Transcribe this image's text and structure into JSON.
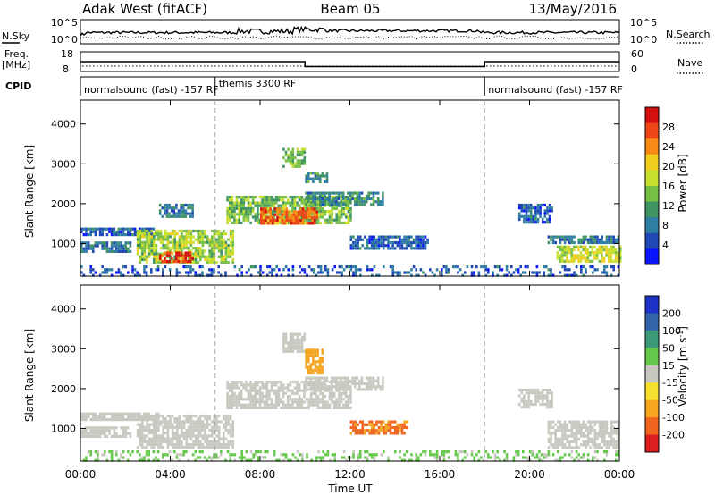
{
  "header": {
    "radar_title": "Adak West (fitACF)",
    "beam": "Beam 05",
    "date": "13/May/2016"
  },
  "noise_panel": {
    "left_label": "N.Sky",
    "right_label": "N.Search",
    "left_ticks": [
      "10^5",
      "10^0"
    ],
    "right_ticks": [
      "10^5",
      "10^0"
    ]
  },
  "freq_panel": {
    "left_label_1": "Freq.",
    "left_label_2": "[MHz]",
    "right_label": "Nave",
    "left_ticks": [
      "18",
      "8"
    ],
    "right_ticks": [
      "60",
      "0"
    ],
    "freq_levels_mhz": [
      {
        "start_hour": 0,
        "end_hour": 10,
        "value": 13
      },
      {
        "start_hour": 10,
        "end_hour": 18,
        "value": 10.5
      },
      {
        "start_hour": 18,
        "end_hour": 24,
        "value": 13
      }
    ]
  },
  "cpid": {
    "label": "CPID",
    "segments": [
      {
        "text": "normalsound (fast) -157 RF",
        "start_hour": 0,
        "end_hour": 6
      },
      {
        "text": "themis 3300 RF",
        "start_hour": 6,
        "end_hour": 18
      },
      {
        "text": "normalsound (fast) -157 RF",
        "start_hour": 18,
        "end_hour": 24
      }
    ]
  },
  "axes": {
    "y_label": "Slant Range [km]",
    "y_ticks": [
      "1000",
      "2000",
      "3000",
      "4000"
    ],
    "x_label": "Time UT",
    "x_ticks": [
      "00:00",
      "04:00",
      "08:00",
      "12:00",
      "16:00",
      "20:00",
      "00:00"
    ]
  },
  "chart_data": [
    {
      "type": "heatmap",
      "title": "Power",
      "xlabel": "Time UT",
      "ylabel": "Slant Range [km]",
      "xlim_hours": [
        0,
        24
      ],
      "ylim_km": [
        180,
        4600
      ],
      "colorbar": {
        "label": "Power [dB]",
        "ticks": [
          "28",
          "24",
          "20",
          "16",
          "12",
          "8",
          "4"
        ],
        "range": [
          0,
          32
        ],
        "colors": [
          "#0a14ff",
          "#1f48b4",
          "#2e7da2",
          "#3f9462",
          "#77be45",
          "#c8df2c",
          "#f0ce1e",
          "#f68a14",
          "#ee4616",
          "#d40f10"
        ]
      },
      "echo_regions": [
        {
          "hour_start": 0.0,
          "hour_end": 2.2,
          "range_start_km": 800,
          "range_end_km": 1050,
          "power_db": 8
        },
        {
          "hour_start": 0.0,
          "hour_end": 3.5,
          "range_start_km": 1250,
          "range_end_km": 1400,
          "power_db": 6
        },
        {
          "hour_start": 2.5,
          "hour_end": 6.8,
          "range_start_km": 550,
          "range_end_km": 1350,
          "power_db": 16
        },
        {
          "hour_start": 3.5,
          "hour_end": 5.0,
          "range_start_km": 550,
          "range_end_km": 800,
          "power_db": 28
        },
        {
          "hour_start": 3.5,
          "hour_end": 5.0,
          "range_start_km": 1700,
          "range_end_km": 2000,
          "power_db": 8
        },
        {
          "hour_start": 6.5,
          "hour_end": 12.0,
          "range_start_km": 1500,
          "range_end_km": 2200,
          "power_db": 14
        },
        {
          "hour_start": 8.0,
          "hour_end": 10.5,
          "range_start_km": 1500,
          "range_end_km": 1900,
          "power_db": 26
        },
        {
          "hour_start": 10.0,
          "hour_end": 13.5,
          "range_start_km": 2000,
          "range_end_km": 2300,
          "power_db": 10
        },
        {
          "hour_start": 9.0,
          "hour_end": 10.0,
          "range_start_km": 2900,
          "range_end_km": 3400,
          "power_db": 14
        },
        {
          "hour_start": 10.0,
          "hour_end": 11.0,
          "range_start_km": 2550,
          "range_end_km": 2800,
          "power_db": 10
        },
        {
          "hour_start": 12.0,
          "hour_end": 15.5,
          "range_start_km": 900,
          "range_end_km": 1200,
          "power_db": 6
        },
        {
          "hour_start": 20.8,
          "hour_end": 24.0,
          "range_start_km": 1000,
          "range_end_km": 1200,
          "power_db": 8
        },
        {
          "hour_start": 21.2,
          "hour_end": 24.0,
          "range_start_km": 550,
          "range_end_km": 950,
          "power_db": 18
        },
        {
          "hour_start": 19.5,
          "hour_end": 21.0,
          "range_start_km": 1500,
          "range_end_km": 2000,
          "power_db": 6
        },
        {
          "hour_start": 0.0,
          "hour_end": 24.0,
          "range_start_km": 180,
          "range_end_km": 450,
          "power_db": 6
        }
      ]
    },
    {
      "type": "heatmap",
      "title": "Velocity",
      "xlabel": "Time UT",
      "ylabel": "Slant Range [km]",
      "xlim_hours": [
        0,
        24
      ],
      "ylim_km": [
        180,
        4600
      ],
      "colorbar": {
        "label": "Velocity [m s^-1]",
        "ticks": [
          "200",
          "100",
          "50",
          "15",
          "-15",
          "-50",
          "-100",
          "-200"
        ],
        "range": [
          -250,
          250
        ],
        "colors": [
          "#1e32c8",
          "#3264a8",
          "#3c9a78",
          "#64c84a",
          "#c8c8c0",
          "#f5e12d",
          "#f5a51e",
          "#f0641e",
          "#dc1e1e"
        ]
      },
      "echo_regions": [
        {
          "hour_start": 0.0,
          "hour_end": 2.2,
          "range_start_km": 800,
          "range_end_km": 1050,
          "velocity_ms": 0
        },
        {
          "hour_start": 0.0,
          "hour_end": 3.5,
          "range_start_km": 1250,
          "range_end_km": 1400,
          "velocity_ms": 0
        },
        {
          "hour_start": 2.5,
          "hour_end": 6.8,
          "range_start_km": 550,
          "range_end_km": 1350,
          "velocity_ms": 0
        },
        {
          "hour_start": 6.5,
          "hour_end": 12.0,
          "range_start_km": 1500,
          "range_end_km": 2200,
          "velocity_ms": 0
        },
        {
          "hour_start": 10.0,
          "hour_end": 13.5,
          "range_start_km": 2000,
          "range_end_km": 2300,
          "velocity_ms": 0
        },
        {
          "hour_start": 9.0,
          "hour_end": 10.0,
          "range_start_km": 2900,
          "range_end_km": 3400,
          "velocity_ms": 0
        },
        {
          "hour_start": 10.0,
          "hour_end": 10.8,
          "range_start_km": 2400,
          "range_end_km": 3000,
          "velocity_ms": -60
        },
        {
          "hour_start": 12.0,
          "hour_end": 14.5,
          "range_start_km": 900,
          "range_end_km": 1200,
          "velocity_ms": -80
        },
        {
          "hour_start": 20.8,
          "hour_end": 24.0,
          "range_start_km": 550,
          "range_end_km": 1200,
          "velocity_ms": 0
        },
        {
          "hour_start": 19.5,
          "hour_end": 21.0,
          "range_start_km": 1500,
          "range_end_km": 2000,
          "velocity_ms": 0
        },
        {
          "hour_start": 0.0,
          "hour_end": 24.0,
          "range_start_km": 180,
          "range_end_km": 450,
          "velocity_ms": 20
        }
      ]
    }
  ]
}
